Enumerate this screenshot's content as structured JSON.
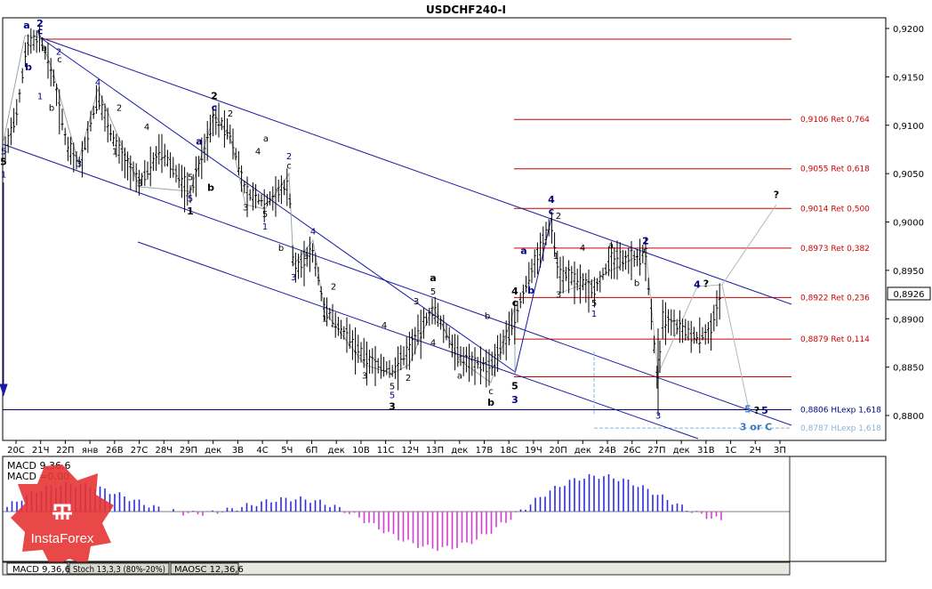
{
  "chart_data": {
    "type": "candlestick",
    "title": "USDCHF240-I",
    "ylim": [
      0.878,
      0.9235
    ],
    "price_ticks": [
      "0,9200",
      "0,9150",
      "0,9100",
      "0,9050",
      "0,9000",
      "0,8950",
      "0,8900",
      "0,8850",
      "0,8800"
    ],
    "price_tick_values": [
      0.92,
      0.915,
      0.91,
      0.905,
      0.9,
      0.895,
      0.89,
      0.885,
      0.88
    ],
    "current_price": "0,8926",
    "current_price_value": 0.8926,
    "x_labels": [
      "20С",
      "21Ч",
      "22П",
      "янв",
      "26В",
      "27С",
      "28Ч",
      "29П",
      "дек",
      "3В",
      "4С",
      "5Ч",
      "6П",
      "дек",
      "10В",
      "11С",
      "12Ч",
      "13П",
      "дек",
      "17В",
      "18С",
      "19Ч",
      "20П",
      "дек",
      "24В",
      "26С",
      "27П",
      "дек",
      "31В",
      "1С",
      "2Ч",
      "3П"
    ],
    "levels": [
      {
        "label": "",
        "value": 0.9189,
        "color": "#cc0000"
      },
      {
        "label": "0,9106 Ret 0,764",
        "value": 0.9106,
        "color": "#cc0000"
      },
      {
        "label": "0,9055 Ret 0,618",
        "value": 0.9055,
        "color": "#cc0000"
      },
      {
        "label": "0,9014 Ret 0,500",
        "value": 0.9014,
        "color": "#cc0000"
      },
      {
        "label": "0,8973 Ret 0,382",
        "value": 0.8973,
        "color": "#cc0000"
      },
      {
        "label": "0,8922 Ret 0,236",
        "value": 0.8922,
        "color": "#cc0000"
      },
      {
        "label": "0,8879 Ret 0,114",
        "value": 0.8879,
        "color": "#cc0000"
      },
      {
        "label": "",
        "value": 0.884,
        "color": "#cc0000"
      },
      {
        "label": "0,8806 HLexp 1,618",
        "value": 0.8806,
        "color": "#000080"
      },
      {
        "label": "0,8787 HLexp 1,618",
        "value": 0.8787,
        "color": "#8ab4d8"
      }
    ],
    "wave_labels": [
      {
        "t": "a",
        "x": 30,
        "p": 0.92,
        "c": "#000080",
        "cls": "wl"
      },
      {
        "t": "2",
        "x": 45,
        "p": 0.9202,
        "c": "#000080",
        "cls": "wl"
      },
      {
        "t": "c",
        "x": 45,
        "p": 0.9194,
        "c": "#000080",
        "cls": "wl"
      },
      {
        "t": "b",
        "x": 32,
        "p": 0.9157,
        "c": "#000080",
        "cls": "wl"
      },
      {
        "t": "1",
        "x": 45,
        "p": 0.9127,
        "c": "#000080",
        "cls": "ws"
      },
      {
        "t": "a",
        "x": 50,
        "p": 0.9177,
        "c": "#000",
        "cls": "ws"
      },
      {
        "t": "2",
        "x": 66,
        "p": 0.9173,
        "c": "#000080",
        "cls": "ws"
      },
      {
        "t": "c",
        "x": 67,
        "p": 0.9165,
        "c": "#000",
        "cls": "ws"
      },
      {
        "t": "b",
        "x": 58,
        "p": 0.9115,
        "c": "#000",
        "cls": "ws"
      },
      {
        "t": "4",
        "x": 110,
        "p": 0.9141,
        "c": "#000080",
        "cls": "ws"
      },
      {
        "t": "2",
        "x": 134,
        "p": 0.9115,
        "c": "#000",
        "cls": "ws"
      },
      {
        "t": "4",
        "x": 165,
        "p": 0.9095,
        "c": "#000",
        "cls": "ws"
      },
      {
        "t": "1",
        "x": 129,
        "p": 0.907,
        "c": "#000",
        "cls": "ws"
      },
      {
        "t": "3",
        "x": 89,
        "p": 0.9057,
        "c": "#000080",
        "cls": "ws"
      },
      {
        "t": "3",
        "x": 157,
        "p": 0.9037,
        "c": "#000",
        "cls": "ws"
      },
      {
        "t": "5",
        "x": 4,
        "p": 0.907,
        "c": "#000080",
        "cls": "ws"
      },
      {
        "t": "5",
        "x": 4,
        "p": 0.9059,
        "c": "#000",
        "cls": "wl"
      },
      {
        "t": "1",
        "x": 4,
        "p": 0.9046,
        "c": "#000080",
        "cls": "ws"
      },
      {
        "t": "2",
        "x": 241,
        "p": 0.9127,
        "c": "#000",
        "cls": "wl"
      },
      {
        "t": "c",
        "x": 241,
        "p": 0.9115,
        "c": "#000080",
        "cls": "wl"
      },
      {
        "t": "2",
        "x": 259,
        "p": 0.9109,
        "c": "#000",
        "cls": "ws"
      },
      {
        "t": "a",
        "x": 224,
        "p": 0.908,
        "c": "#000080",
        "cls": "wl"
      },
      {
        "t": "b",
        "x": 237,
        "p": 0.9032,
        "c": "#000",
        "cls": "wl"
      },
      {
        "t": "5",
        "x": 214,
        "p": 0.9043,
        "c": "#000",
        "cls": "ws"
      },
      {
        "t": "5",
        "x": 214,
        "p": 0.9021,
        "c": "#000080",
        "cls": "ws"
      },
      {
        "t": "1",
        "x": 214,
        "p": 0.9008,
        "c": "#000",
        "cls": "wl"
      },
      {
        "t": "a",
        "x": 299,
        "p": 0.9083,
        "c": "#000",
        "cls": "ws"
      },
      {
        "t": "4",
        "x": 290,
        "p": 0.907,
        "c": "#000",
        "cls": "ws"
      },
      {
        "t": "2",
        "x": 325,
        "p": 0.9065,
        "c": "#000080",
        "cls": "ws"
      },
      {
        "t": "c",
        "x": 325,
        "p": 0.9055,
        "c": "#000",
        "cls": "ws"
      },
      {
        "t": "3",
        "x": 276,
        "p": 0.9012,
        "c": "#000",
        "cls": "ws"
      },
      {
        "t": "5",
        "x": 298,
        "p": 0.9005,
        "c": "#000",
        "cls": "ws"
      },
      {
        "t": "1",
        "x": 298,
        "p": 0.8992,
        "c": "#000080",
        "cls": "ws"
      },
      {
        "t": "4",
        "x": 352,
        "p": 0.8987,
        "c": "#000080",
        "cls": "ws"
      },
      {
        "t": "b",
        "x": 316,
        "p": 0.897,
        "c": "#000",
        "cls": "ws"
      },
      {
        "t": "a",
        "x": 344,
        "p": 0.8962,
        "c": "#000",
        "cls": "ws"
      },
      {
        "t": "3",
        "x": 330,
        "p": 0.894,
        "c": "#000080",
        "cls": "ws"
      },
      {
        "t": "2",
        "x": 375,
        "p": 0.893,
        "c": "#000",
        "cls": "ws"
      },
      {
        "t": "1",
        "x": 365,
        "p": 0.8897,
        "c": "#000",
        "cls": "ws"
      },
      {
        "t": "4",
        "x": 432,
        "p": 0.889,
        "c": "#000",
        "cls": "ws"
      },
      {
        "t": "3",
        "x": 410,
        "p": 0.8838,
        "c": "#000",
        "cls": "ws"
      },
      {
        "t": "5",
        "x": 441,
        "p": 0.8827,
        "c": "#000",
        "cls": "ws"
      },
      {
        "t": "5",
        "x": 441,
        "p": 0.8818,
        "c": "#000080",
        "cls": "ws"
      },
      {
        "t": "3",
        "x": 441,
        "p": 0.8806,
        "c": "#000",
        "cls": "wl"
      },
      {
        "t": "2",
        "x": 459,
        "p": 0.8836,
        "c": "#000",
        "cls": "ws"
      },
      {
        "t": "a",
        "x": 487,
        "p": 0.8939,
        "c": "#000",
        "cls": "wl"
      },
      {
        "t": "5",
        "x": 487,
        "p": 0.8925,
        "c": "#000",
        "cls": "ws"
      },
      {
        "t": "3",
        "x": 468,
        "p": 0.8915,
        "c": "#000",
        "cls": "ws"
      },
      {
        "t": "4",
        "x": 487,
        "p": 0.8872,
        "c": "#000",
        "cls": "ws"
      },
      {
        "t": "b",
        "x": 548,
        "p": 0.89,
        "c": "#000",
        "cls": "ws"
      },
      {
        "t": "a",
        "x": 517,
        "p": 0.8838,
        "c": "#000",
        "cls": "ws"
      },
      {
        "t": "c",
        "x": 552,
        "p": 0.8822,
        "c": "#000",
        "cls": "ws"
      },
      {
        "t": "b",
        "x": 552,
        "p": 0.881,
        "c": "#000",
        "cls": "wl"
      },
      {
        "t": "4",
        "x": 579,
        "p": 0.8925,
        "c": "#000",
        "cls": "wl"
      },
      {
        "t": "c",
        "x": 579,
        "p": 0.8913,
        "c": "#000",
        "cls": "wl"
      },
      {
        "t": "5",
        "x": 579,
        "p": 0.8827,
        "c": "#000",
        "cls": "wl"
      },
      {
        "t": "3",
        "x": 579,
        "p": 0.8813,
        "c": "#000080",
        "cls": "wl"
      },
      {
        "t": "a",
        "x": 589,
        "p": 0.8967,
        "c": "#000080",
        "cls": "wl"
      },
      {
        "t": "b",
        "x": 597,
        "p": 0.8926,
        "c": "#000080",
        "cls": "wl"
      },
      {
        "t": "4",
        "x": 620,
        "p": 0.902,
        "c": "#000080",
        "cls": "wl"
      },
      {
        "t": "c",
        "x": 620,
        "p": 0.9008,
        "c": "#000080",
        "cls": "wl"
      },
      {
        "t": "2",
        "x": 628,
        "p": 0.9003,
        "c": "#000",
        "cls": "ws"
      },
      {
        "t": "1",
        "x": 625,
        "p": 0.8962,
        "c": "#000",
        "cls": "ws"
      },
      {
        "t": "4",
        "x": 655,
        "p": 0.897,
        "c": "#000",
        "cls": "ws"
      },
      {
        "t": "3",
        "x": 628,
        "p": 0.8922,
        "c": "#000",
        "cls": "ws"
      },
      {
        "t": "5",
        "x": 668,
        "p": 0.8913,
        "c": "#000",
        "cls": "ws"
      },
      {
        "t": "1",
        "x": 668,
        "p": 0.8902,
        "c": "#000080",
        "cls": "ws"
      },
      {
        "t": "a",
        "x": 687,
        "p": 0.8973,
        "c": "#000",
        "cls": "ws"
      },
      {
        "t": "2",
        "x": 726,
        "p": 0.8977,
        "c": "#000080",
        "cls": "wl"
      },
      {
        "t": "c",
        "x": 726,
        "p": 0.8968,
        "c": "#000",
        "cls": "ws"
      },
      {
        "t": "b",
        "x": 716,
        "p": 0.8934,
        "c": "#000",
        "cls": "ws"
      },
      {
        "t": "4",
        "x": 784,
        "p": 0.8932,
        "c": "#000080",
        "cls": "wl"
      },
      {
        "t": "?",
        "x": 794,
        "p": 0.8933,
        "c": "#000",
        "cls": "wl"
      },
      {
        "t": "3",
        "x": 740,
        "p": 0.8797,
        "c": "#000080",
        "cls": "ws"
      },
      {
        "t": "?",
        "x": 873,
        "p": 0.9025,
        "c": "#000",
        "cls": "wl"
      },
      {
        "t": "5",
        "x": 841,
        "p": 0.8803,
        "c": "#3b7bbf",
        "cls": "wl"
      },
      {
        "t": "?",
        "x": 851,
        "p": 0.8802,
        "c": "#000",
        "cls": "wl"
      },
      {
        "t": "5",
        "x": 860,
        "p": 0.8802,
        "c": "#000080",
        "cls": "wl"
      },
      {
        "t": "3 or C",
        "x": 850,
        "p": 0.8785,
        "c": "#3b7bbf",
        "cls": "wl"
      }
    ],
    "indicator_panel": {
      "labels": [
        "MACD 9,36,6",
        "MACD =0,00"
      ],
      "tabs": [
        "MACD 9,36,6",
        "Stoch 13,3,3 (80%-20%)",
        "MAOSC 12,36,6"
      ]
    }
  },
  "watermark": {
    "text": "InstaForex"
  }
}
